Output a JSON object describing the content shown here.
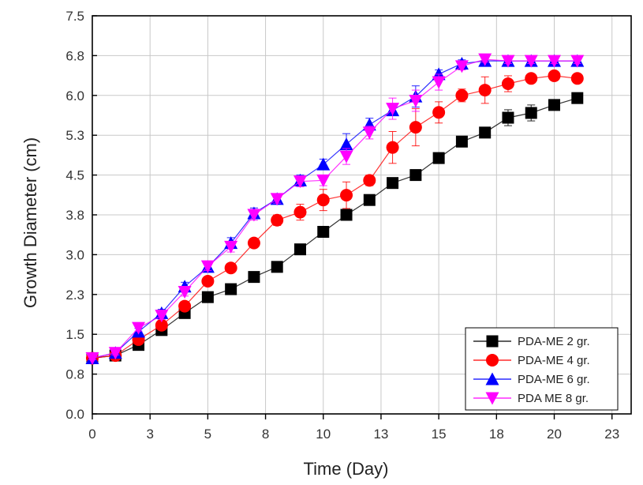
{
  "chart_data": {
    "type": "line",
    "xlabel": "Time (Day)",
    "ylabel": "Growth Diameter (cm)",
    "xlim": [
      0,
      23.33
    ],
    "ylim": [
      0,
      7.5
    ],
    "x_ticks": [
      {
        "value": 0,
        "label": "0"
      },
      {
        "value": 2.5,
        "label": "3"
      },
      {
        "value": 5,
        "label": "5"
      },
      {
        "value": 7.5,
        "label": "8"
      },
      {
        "value": 10,
        "label": "10"
      },
      {
        "value": 12.5,
        "label": "13"
      },
      {
        "value": 15,
        "label": "15"
      },
      {
        "value": 17.5,
        "label": "18"
      },
      {
        "value": 20,
        "label": "20"
      },
      {
        "value": 22.5,
        "label": "23"
      }
    ],
    "y_ticks": [
      {
        "value": 0,
        "label": "0.0"
      },
      {
        "value": 0.75,
        "label": "0.8"
      },
      {
        "value": 1.5,
        "label": "1.5"
      },
      {
        "value": 2.25,
        "label": "2.3"
      },
      {
        "value": 3.0,
        "label": "3.0"
      },
      {
        "value": 3.75,
        "label": "3.8"
      },
      {
        "value": 4.5,
        "label": "4.5"
      },
      {
        "value": 5.25,
        "label": "5.3"
      },
      {
        "value": 6.0,
        "label": "6.0"
      },
      {
        "value": 6.75,
        "label": "6.8"
      },
      {
        "value": 7.5,
        "label": "7.5"
      }
    ],
    "grid": true,
    "legend_position": "bottom-right",
    "x": [
      0,
      1.0,
      2.0,
      3.0,
      4.0,
      5.0,
      6.0,
      7.0,
      8.0,
      9.0,
      10.0,
      11.0,
      12.0,
      13.0,
      14.0,
      15.0,
      16.0,
      17.0,
      18.0,
      19.0,
      20.0,
      21.0
    ],
    "series": [
      {
        "name": "PDA-ME 2 gr.",
        "color": "#000000",
        "marker": "square",
        "values": [
          1.05,
          1.1,
          1.3,
          1.58,
          1.9,
          2.2,
          2.35,
          2.58,
          2.77,
          3.1,
          3.43,
          3.75,
          4.03,
          4.35,
          4.5,
          4.82,
          5.13,
          5.3,
          5.58,
          5.67,
          5.82,
          5.95
        ],
        "errors": [
          0.03,
          0.03,
          0.05,
          0.05,
          0.06,
          0.05,
          0.05,
          0.05,
          0.06,
          0.08,
          0.08,
          0.08,
          0.06,
          0.05,
          0.06,
          0.06,
          0.05,
          0.07,
          0.15,
          0.15,
          0.08,
          0.05
        ]
      },
      {
        "name": "PDA-ME 4 gr.",
        "color": "#ff0000",
        "marker": "circle",
        "values": [
          1.05,
          1.1,
          1.4,
          1.67,
          2.03,
          2.5,
          2.75,
          3.22,
          3.65,
          3.8,
          4.03,
          4.12,
          4.4,
          5.02,
          5.4,
          5.68,
          6.0,
          6.1,
          6.22,
          6.32,
          6.37,
          6.32
        ],
        "errors": [
          0.03,
          0.03,
          0.05,
          0.06,
          0.07,
          0.07,
          0.07,
          0.08,
          0.1,
          0.15,
          0.2,
          0.25,
          0.1,
          0.3,
          0.35,
          0.2,
          0.12,
          0.25,
          0.15,
          0.08,
          0.08,
          0.07
        ]
      },
      {
        "name": "PDA-ME 6 gr.",
        "color": "#0000ff",
        "marker": "triangle-up",
        "values": [
          1.05,
          1.15,
          1.55,
          1.9,
          2.4,
          2.77,
          3.22,
          3.78,
          4.05,
          4.4,
          4.7,
          5.08,
          5.45,
          5.72,
          5.98,
          6.4,
          6.6,
          6.65,
          6.65,
          6.65,
          6.65,
          6.65
        ],
        "errors": [
          0.03,
          0.04,
          0.06,
          0.07,
          0.08,
          0.08,
          0.1,
          0.1,
          0.08,
          0.1,
          0.1,
          0.2,
          0.12,
          0.1,
          0.2,
          0.08,
          0.07,
          0.05,
          0.05,
          0.05,
          0.05,
          0.05
        ]
      },
      {
        "name": "PDA ME 8 gr.",
        "color": "#ff00ff",
        "marker": "triangle-down",
        "values": [
          1.05,
          1.15,
          1.62,
          1.85,
          2.3,
          2.78,
          3.15,
          3.75,
          4.05,
          4.38,
          4.4,
          4.85,
          5.3,
          5.75,
          5.9,
          6.25,
          6.55,
          6.68,
          6.65,
          6.65,
          6.65,
          6.65
        ],
        "errors": [
          0.03,
          0.04,
          0.06,
          0.07,
          0.08,
          0.08,
          0.1,
          0.1,
          0.08,
          0.1,
          0.1,
          0.15,
          0.12,
          0.2,
          0.2,
          0.15,
          0.07,
          0.05,
          0.05,
          0.05,
          0.05,
          0.05
        ]
      }
    ]
  }
}
